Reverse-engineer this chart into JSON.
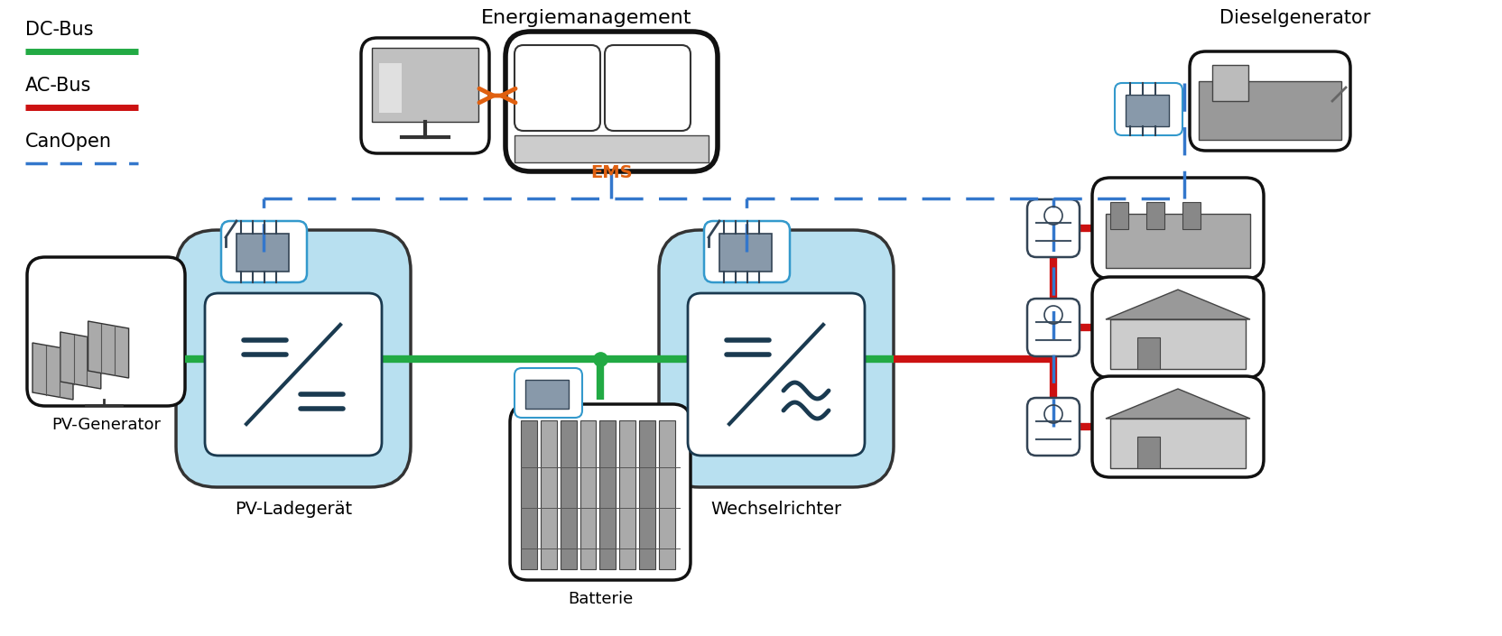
{
  "bg_color": "#ffffff",
  "light_blue_fill": "#b8e0f0",
  "light_blue_edge": "#3399cc",
  "dc_bus_color": "#22aa44",
  "ac_bus_color": "#cc1111",
  "canopen_color": "#3377cc",
  "orange_color": "#e06010",
  "dark_box_edge": "#111111",
  "mid_box_edge": "#333333",
  "conv_symbol_color": "#1a3a50",
  "label_dc": "DC-Bus",
  "label_ac": "AC-Bus",
  "label_canopen": "CanOpen",
  "label_energiemanagement": "Energiemanagement",
  "label_ems": "EMS",
  "label_pv": "PV-Generator",
  "label_ladegeraet": "PV-Ladegerät",
  "label_batterie": "Batterie",
  "label_wechselrichter": "Wechselrichter",
  "label_diesel": "Dieselgenerator",
  "figw": 16.64,
  "figh": 7.05,
  "dpi": 100
}
